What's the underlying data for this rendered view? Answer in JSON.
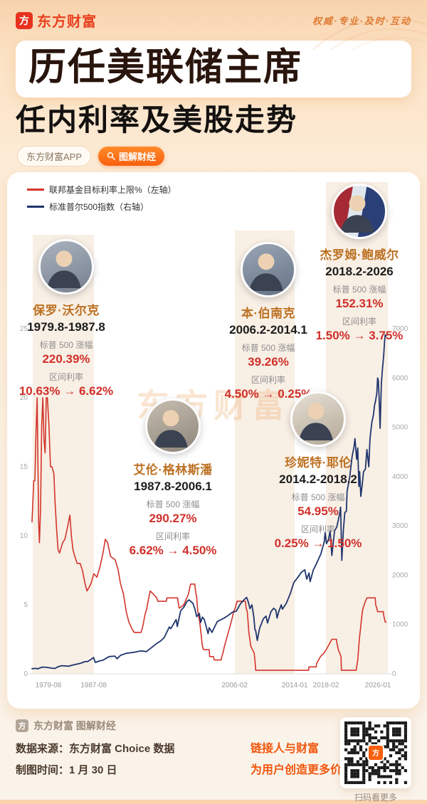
{
  "header": {
    "brand": "东方财富",
    "logo_glyph": "方",
    "slogan": "权威·专业·及时·互动"
  },
  "title": {
    "line1": "历任美联储主席",
    "line2": "任内利率及美股走势"
  },
  "tags": {
    "app": "东方财富APP",
    "feature": "图解财经"
  },
  "legend": [
    {
      "label": "联邦基金目标利率上限%（左轴）",
      "color": "#d3342b"
    },
    {
      "label": "标准普尔500指数（右轴）",
      "color": "#20356d"
    }
  ],
  "labels": {
    "sp_change": "标普 500 涨幅",
    "rate_range": "区间利率"
  },
  "chairs": [
    {
      "name": "保罗·沃尔克",
      "tenure": "1979.8-1987.8",
      "sp_change": "220.39%",
      "rate_range": "10.63% → 6.62%"
    },
    {
      "name": "艾伦·格林斯潘",
      "tenure": "1987.8-2006.1",
      "sp_change": "290.27%",
      "rate_range": "6.62% → 4.50%"
    },
    {
      "name": "本·伯南克",
      "tenure": "2006.2-2014.1",
      "sp_change": "39.26%",
      "rate_range": "4.50% → 0.25%"
    },
    {
      "name": "珍妮特·耶伦",
      "tenure": "2014.2-2018.2",
      "sp_change": "54.95%",
      "rate_range": "0.25% → 1.50%"
    },
    {
      "name": "杰罗姆·鲍威尔",
      "tenure": "2018.2-2026",
      "sp_change": "152.31%",
      "rate_range": "1.50% → 3.75%"
    }
  ],
  "watermark": "东方财富",
  "chart_data": {
    "type": "line",
    "x_axis_range": [
      1979.58,
      2026.3
    ],
    "left_axis_max": 25,
    "right_axis_max": 7000,
    "left_ticks": [
      0,
      5,
      10,
      15,
      20,
      25
    ],
    "right_ticks": [
      0,
      1000,
      2000,
      3000,
      4000,
      5000,
      6000,
      7000
    ],
    "x_ticks": [
      {
        "label": "1979-08",
        "year": 1979.67
      },
      {
        "label": "1987-08",
        "year": 1987.67
      },
      {
        "label": "2006-02",
        "year": 2006.17
      },
      {
        "label": "2014-01",
        "year": 2014.08
      },
      {
        "label": "2018-02",
        "year": 2018.17
      },
      {
        "label": "2026-01",
        "year": 2026.08
      }
    ],
    "bands": [
      {
        "from": 1979.67,
        "to": 1987.67
      },
      {
        "from": 2006.17,
        "to": 2014.08
      },
      {
        "from": 2018.17,
        "to": 2026.3
      }
    ],
    "series": [
      {
        "name": "联邦基金目标利率上限%（左轴）",
        "axis": "left",
        "color": "#d3342b",
        "points": [
          [
            1979.58,
            11
          ],
          [
            1979.8,
            14
          ],
          [
            1979.95,
            14
          ],
          [
            1980.1,
            17.5
          ],
          [
            1980.25,
            20
          ],
          [
            1980.45,
            11
          ],
          [
            1980.55,
            9.5
          ],
          [
            1980.7,
            12
          ],
          [
            1980.85,
            18
          ],
          [
            1981.0,
            20
          ],
          [
            1981.15,
            17
          ],
          [
            1981.3,
            16
          ],
          [
            1981.45,
            20
          ],
          [
            1981.6,
            20
          ],
          [
            1981.8,
            18
          ],
          [
            1982.0,
            15
          ],
          [
            1982.2,
            15
          ],
          [
            1982.45,
            14.5
          ],
          [
            1982.6,
            12.5
          ],
          [
            1982.8,
            10.5
          ],
          [
            1983.0,
            9
          ],
          [
            1983.2,
            8.75
          ],
          [
            1983.6,
            9.5
          ],
          [
            1983.9,
            9.75
          ],
          [
            1984.2,
            10.5
          ],
          [
            1984.55,
            11.5
          ],
          [
            1984.75,
            10
          ],
          [
            1984.95,
            9
          ],
          [
            1985.2,
            8.5
          ],
          [
            1985.5,
            8
          ],
          [
            1985.9,
            8
          ],
          [
            1986.2,
            7.5
          ],
          [
            1986.55,
            6.5
          ],
          [
            1986.8,
            6
          ],
          [
            1987.3,
            6.5
          ],
          [
            1987.7,
            7.25
          ],
          [
            1988.1,
            7
          ],
          [
            1988.5,
            7.75
          ],
          [
            1988.9,
            8.75
          ],
          [
            1989.2,
            9.75
          ],
          [
            1989.5,
            9.5
          ],
          [
            1989.9,
            8.5
          ],
          [
            1990.5,
            8.25
          ],
          [
            1990.9,
            7.5
          ],
          [
            1991.2,
            6.5
          ],
          [
            1991.6,
            5.75
          ],
          [
            1991.95,
            4.5
          ],
          [
            1992.3,
            3.75
          ],
          [
            1992.7,
            3.25
          ],
          [
            1993.0,
            3
          ],
          [
            1993.9,
            3
          ],
          [
            1994.15,
            3.5
          ],
          [
            1994.4,
            4.25
          ],
          [
            1994.65,
            4.75
          ],
          [
            1994.9,
            5.5
          ],
          [
            1995.1,
            6
          ],
          [
            1995.55,
            5.75
          ],
          [
            1995.95,
            5.5
          ],
          [
            1996.1,
            5.25
          ],
          [
            1997.2,
            5.25
          ],
          [
            1997.3,
            5.5
          ],
          [
            1998.7,
            5.5
          ],
          [
            1998.75,
            5.25
          ],
          [
            1998.9,
            4.75
          ],
          [
            1999.5,
            5
          ],
          [
            1999.9,
            5.5
          ],
          [
            2000.1,
            5.75
          ],
          [
            2000.4,
            6.5
          ],
          [
            2000.95,
            6.5
          ],
          [
            2001.05,
            6
          ],
          [
            2001.2,
            5.5
          ],
          [
            2001.35,
            4.5
          ],
          [
            2001.6,
            3.75
          ],
          [
            2001.75,
            3
          ],
          [
            2001.95,
            2
          ],
          [
            2002.1,
            1.75
          ],
          [
            2002.85,
            1.75
          ],
          [
            2002.9,
            1.25
          ],
          [
            2003.4,
            1.25
          ],
          [
            2003.5,
            1
          ],
          [
            2004.4,
            1
          ],
          [
            2004.5,
            1.25
          ],
          [
            2004.65,
            1.5
          ],
          [
            2004.85,
            2
          ],
          [
            2005.1,
            2.5
          ],
          [
            2005.35,
            3
          ],
          [
            2005.6,
            3.5
          ],
          [
            2005.85,
            4
          ],
          [
            2006.05,
            4.5
          ],
          [
            2006.25,
            4.75
          ],
          [
            2006.5,
            5.25
          ],
          [
            2007.6,
            5.25
          ],
          [
            2007.7,
            4.75
          ],
          [
            2007.85,
            4.5
          ],
          [
            2008.05,
            3
          ],
          [
            2008.3,
            2
          ],
          [
            2008.75,
            1.5
          ],
          [
            2008.85,
            1
          ],
          [
            2008.95,
            0.25
          ],
          [
            2015.9,
            0.25
          ],
          [
            2015.95,
            0.5
          ],
          [
            2016.9,
            0.5
          ],
          [
            2016.95,
            0.75
          ],
          [
            2017.2,
            1
          ],
          [
            2017.45,
            1.25
          ],
          [
            2017.9,
            1.5
          ],
          [
            2018.2,
            1.75
          ],
          [
            2018.45,
            2
          ],
          [
            2018.7,
            2.25
          ],
          [
            2018.95,
            2.5
          ],
          [
            2019.55,
            2.5
          ],
          [
            2019.6,
            2.25
          ],
          [
            2019.7,
            2
          ],
          [
            2019.8,
            1.75
          ],
          [
            2020.15,
            1.25
          ],
          [
            2020.2,
            0.25
          ],
          [
            2022.15,
            0.25
          ],
          [
            2022.2,
            0.5
          ],
          [
            2022.35,
            1
          ],
          [
            2022.45,
            1.75
          ],
          [
            2022.55,
            2.5
          ],
          [
            2022.7,
            3.25
          ],
          [
            2022.85,
            4
          ],
          [
            2022.95,
            4.5
          ],
          [
            2023.05,
            4.75
          ],
          [
            2023.2,
            5
          ],
          [
            2023.35,
            5.25
          ],
          [
            2023.55,
            5.5
          ],
          [
            2024.65,
            5.5
          ],
          [
            2024.7,
            5
          ],
          [
            2024.85,
            4.75
          ],
          [
            2024.95,
            4.5
          ],
          [
            2025.7,
            4.5
          ],
          [
            2025.75,
            4.25
          ],
          [
            2025.85,
            4
          ],
          [
            2025.95,
            3.75
          ],
          [
            2026.08,
            3.75
          ]
        ]
      },
      {
        "name": "标准普尔500指数（右轴）",
        "axis": "right",
        "color": "#20356d",
        "points": [
          [
            1979.58,
            104
          ],
          [
            1980.1,
            110
          ],
          [
            1980.3,
            100
          ],
          [
            1980.9,
            135
          ],
          [
            1981.5,
            132
          ],
          [
            1982.1,
            115
          ],
          [
            1982.6,
            108
          ],
          [
            1982.95,
            140
          ],
          [
            1983.5,
            165
          ],
          [
            1984.4,
            155
          ],
          [
            1985.0,
            180
          ],
          [
            1985.9,
            210
          ],
          [
            1986.5,
            245
          ],
          [
            1986.9,
            250
          ],
          [
            1987.3,
            290
          ],
          [
            1987.65,
            330
          ],
          [
            1987.9,
            230
          ],
          [
            1988.4,
            260
          ],
          [
            1988.9,
            275
          ],
          [
            1989.7,
            350
          ],
          [
            1990.45,
            360
          ],
          [
            1990.75,
            305
          ],
          [
            1991.2,
            375
          ],
          [
            1991.95,
            415
          ],
          [
            1992.9,
            435
          ],
          [
            1993.9,
            465
          ],
          [
            1994.6,
            450
          ],
          [
            1995.5,
            560
          ],
          [
            1995.95,
            615
          ],
          [
            1996.5,
            670
          ],
          [
            1996.95,
            740
          ],
          [
            1997.6,
            950
          ],
          [
            1997.8,
            915
          ],
          [
            1998.5,
            1100
          ],
          [
            1998.65,
            960
          ],
          [
            1999.1,
            1280
          ],
          [
            1999.5,
            1350
          ],
          [
            1999.95,
            1470
          ],
          [
            2000.2,
            1500
          ],
          [
            2000.7,
            1430
          ],
          [
            2000.95,
            1320
          ],
          [
            2001.2,
            1160
          ],
          [
            2001.55,
            1225
          ],
          [
            2001.72,
            1040
          ],
          [
            2001.95,
            1150
          ],
          [
            2002.2,
            1100
          ],
          [
            2002.7,
            815
          ],
          [
            2002.85,
            935
          ],
          [
            2003.2,
            840
          ],
          [
            2003.9,
            1060
          ],
          [
            2004.8,
            1130
          ],
          [
            2005.3,
            1180
          ],
          [
            2005.9,
            1250
          ],
          [
            2006.4,
            1270
          ],
          [
            2006.95,
            1420
          ],
          [
            2007.4,
            1500
          ],
          [
            2007.75,
            1550
          ],
          [
            2007.95,
            1470
          ],
          [
            2008.2,
            1320
          ],
          [
            2008.45,
            1400
          ],
          [
            2008.7,
            1160
          ],
          [
            2008.85,
            900
          ],
          [
            2008.95,
            875
          ],
          [
            2009.15,
            677
          ],
          [
            2009.45,
            920
          ],
          [
            2009.95,
            1115
          ],
          [
            2010.3,
            1170
          ],
          [
            2010.5,
            1030
          ],
          [
            2010.95,
            1260
          ],
          [
            2011.3,
            1330
          ],
          [
            2011.6,
            1290
          ],
          [
            2011.75,
            1130
          ],
          [
            2011.95,
            1250
          ],
          [
            2012.3,
            1400
          ],
          [
            2012.45,
            1310
          ],
          [
            2012.95,
            1425
          ],
          [
            2013.5,
            1630
          ],
          [
            2013.95,
            1850
          ],
          [
            2014.5,
            1960
          ],
          [
            2014.95,
            2060
          ],
          [
            2015.4,
            2110
          ],
          [
            2015.65,
            1920
          ],
          [
            2015.95,
            2045
          ],
          [
            2016.1,
            1870
          ],
          [
            2016.5,
            2100
          ],
          [
            2016.95,
            2240
          ],
          [
            2017.5,
            2430
          ],
          [
            2017.95,
            2675
          ],
          [
            2018.07,
            2870
          ],
          [
            2018.25,
            2640
          ],
          [
            2018.5,
            2720
          ],
          [
            2018.72,
            2900
          ],
          [
            2018.95,
            2400
          ],
          [
            2019.3,
            2900
          ],
          [
            2019.6,
            2980
          ],
          [
            2019.95,
            3230
          ],
          [
            2020.1,
            3380
          ],
          [
            2020.25,
            2300
          ],
          [
            2020.45,
            2900
          ],
          [
            2020.65,
            3270
          ],
          [
            2020.85,
            3300
          ],
          [
            2020.95,
            3700
          ],
          [
            2021.3,
            4000
          ],
          [
            2021.6,
            4400
          ],
          [
            2021.85,
            4600
          ],
          [
            2021.98,
            4770
          ],
          [
            2022.2,
            4350
          ],
          [
            2022.35,
            4580
          ],
          [
            2022.5,
            3800
          ],
          [
            2022.6,
            4100
          ],
          [
            2022.75,
            3600
          ],
          [
            2022.95,
            3850
          ],
          [
            2023.1,
            4100
          ],
          [
            2023.35,
            4150
          ],
          [
            2023.55,
            4550
          ],
          [
            2023.8,
            4200
          ],
          [
            2023.95,
            4770
          ],
          [
            2024.2,
            5100
          ],
          [
            2024.4,
            5250
          ],
          [
            2024.55,
            5450
          ],
          [
            2024.7,
            5550
          ],
          [
            2024.85,
            5700
          ],
          [
            2024.95,
            6000
          ],
          [
            2025.05,
            5950
          ],
          [
            2025.15,
            5600
          ],
          [
            2025.28,
            4980
          ],
          [
            2025.45,
            5900
          ],
          [
            2025.6,
            6200
          ],
          [
            2025.75,
            6450
          ],
          [
            2025.85,
            6700
          ],
          [
            2025.95,
            6880
          ],
          [
            2026.05,
            6850
          ]
        ]
      }
    ]
  },
  "footer": {
    "brand": "东方财富 图解财经",
    "source": "数据来源：东方财富 Choice 数据",
    "date": "制图时间：1 月 30 日",
    "slogan1": "链接人与财富",
    "slogan2": "为用户创造更多价值",
    "qr_caption": "扫码看更多"
  }
}
